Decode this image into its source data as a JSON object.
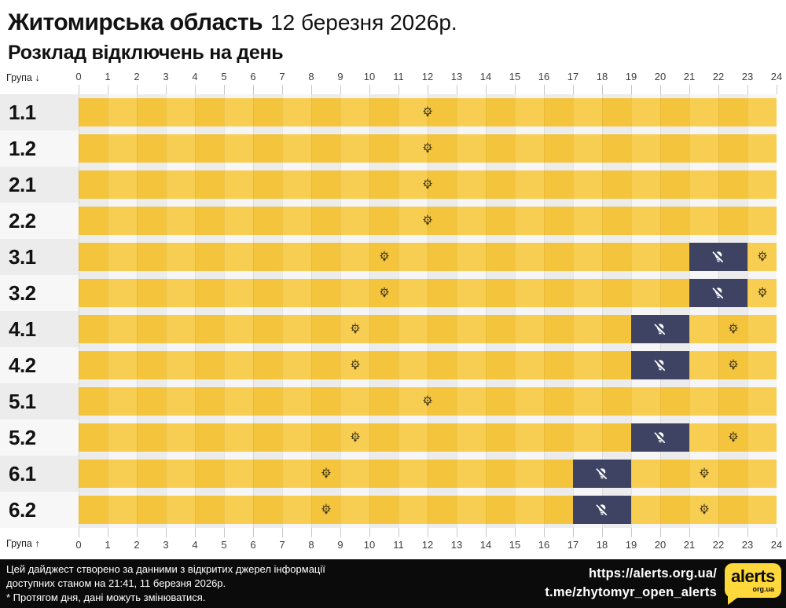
{
  "header": {
    "region": "Житомирська область",
    "date": "12 березня 2026р.",
    "subtitle": "Розклад відключень на день"
  },
  "chart_data": {
    "type": "heatmap",
    "title": "Розклад відключень на день — Житомирська область, 12 березня 2026р.",
    "x_axis": {
      "label_top": "Група ↓",
      "label_bottom": "Група ↑",
      "unit": "hour",
      "range": [
        0,
        24
      ],
      "hours": [
        0,
        1,
        2,
        3,
        4,
        5,
        6,
        7,
        8,
        9,
        10,
        11,
        12,
        13,
        14,
        15,
        16,
        17,
        18,
        19,
        20,
        21,
        22,
        23,
        24
      ]
    },
    "states": {
      "on": "power on (yellow band, bulb icon)",
      "off": "power off (navy band, crossed-out bulb icon)"
    },
    "rows": [
      {
        "group": "1.1",
        "off_intervals": [],
        "bulb_hours": [
          12
        ]
      },
      {
        "group": "1.2",
        "off_intervals": [],
        "bulb_hours": [
          12
        ]
      },
      {
        "group": "2.1",
        "off_intervals": [],
        "bulb_hours": [
          12
        ]
      },
      {
        "group": "2.2",
        "off_intervals": [],
        "bulb_hours": [
          12
        ]
      },
      {
        "group": "3.1",
        "off_intervals": [
          [
            21,
            23
          ]
        ],
        "bulb_hours": [
          10.5,
          23.5
        ]
      },
      {
        "group": "3.2",
        "off_intervals": [
          [
            21,
            23
          ]
        ],
        "bulb_hours": [
          10.5,
          23.5
        ]
      },
      {
        "group": "4.1",
        "off_intervals": [
          [
            19,
            21
          ]
        ],
        "bulb_hours": [
          9.5,
          22.5
        ]
      },
      {
        "group": "4.2",
        "off_intervals": [
          [
            19,
            21
          ]
        ],
        "bulb_hours": [
          9.5,
          22.5
        ]
      },
      {
        "group": "5.1",
        "off_intervals": [],
        "bulb_hours": [
          12
        ]
      },
      {
        "group": "5.2",
        "off_intervals": [
          [
            19,
            21
          ]
        ],
        "bulb_hours": [
          9.5,
          22.5
        ]
      },
      {
        "group": "6.1",
        "off_intervals": [
          [
            17,
            19
          ]
        ],
        "bulb_hours": [
          8.5,
          21.5
        ]
      },
      {
        "group": "6.2",
        "off_intervals": [
          [
            17,
            19
          ]
        ],
        "bulb_hours": [
          8.5,
          21.5
        ]
      }
    ]
  },
  "footer": {
    "note_lines": [
      "Цей дайджест створено за данними з відкритих джерел інформації",
      "доступних станом на 21:41, 11 березня 2026р.",
      "* Протягом дня, дані можуть змінюватися."
    ],
    "links": [
      "https://alerts.org.ua/",
      "t.me/zhytomyr_open_alerts"
    ],
    "logo": {
      "text": "alerts",
      "sub": "org.ua"
    }
  },
  "colors": {
    "power_on_a": "#F3C43C",
    "power_on_b": "#F8CE52",
    "power_off": "#3E4363",
    "row_label_bg_a": "#ECECEC",
    "row_label_bg_b": "#F7F7F7",
    "track_gap_a": "#ECECEC",
    "track_gap_b": "#F6F6F6",
    "footer_bg": "#0B0B0B",
    "logo_yellow": "#FFD83B",
    "text_dark": "#111111",
    "axis_text": "#3D3D3D"
  }
}
